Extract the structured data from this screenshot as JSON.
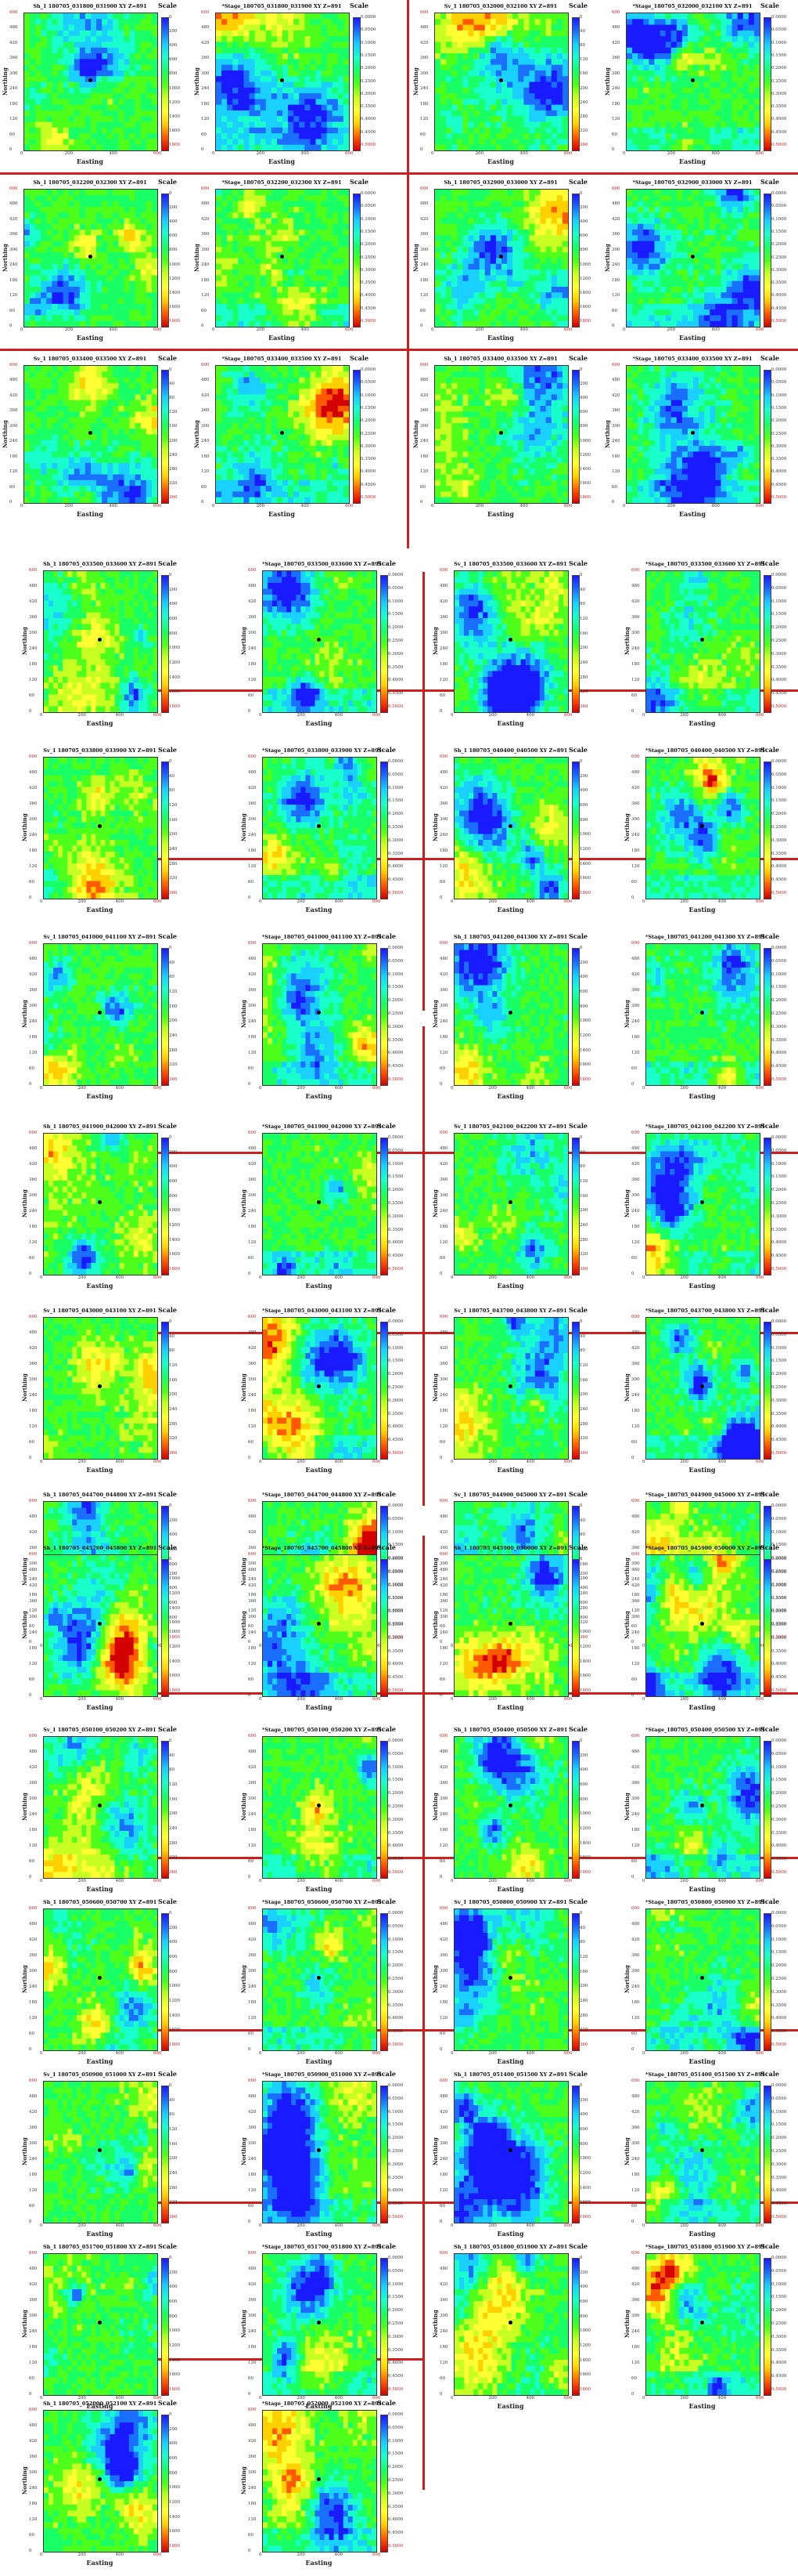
{
  "labels": {
    "x_axis": "Easting",
    "y_axis": "Northing",
    "scale": "Scale"
  },
  "colors": {
    "separator": "#cc1f1f",
    "rainbow": [
      "#d40000",
      "#ff5a00",
      "#ffd000",
      "#ffff33",
      "#c8ff22",
      "#4dff1a",
      "#19ff66",
      "#19ffcc",
      "#19d0ff",
      "#1a6fff",
      "#1a1aff"
    ]
  },
  "scales": {
    "sv": [
      "0",
      "40",
      "80",
      "120",
      "160",
      "200",
      "240",
      "280",
      "320",
      "360"
    ],
    "sh": [
      "0",
      "200",
      "400",
      "600",
      "800",
      "1000",
      "1200",
      "1400",
      "1600",
      "1800"
    ],
    "stage": [
      "0.0000",
      "0.0500",
      "0.1000",
      "0.1500",
      "0.2000",
      "0.2500",
      "0.3000",
      "0.3500",
      "0.4000",
      "0.4500",
      "0.5000"
    ]
  },
  "xticks": [
    "0",
    "200",
    "400",
    "600"
  ],
  "yticks": [
    "0",
    "60",
    "120",
    "180",
    "240",
    "300",
    "360",
    "420",
    "480",
    "600"
  ],
  "figure": {
    "panels": [
      {
        "title": "Sh_1 180705_031800_031900 XY Z=891",
        "kind": "sh"
      },
      {
        "title": "*Stage_180705_031800_031900 XY Z=891",
        "kind": "stage"
      },
      {
        "title": "Sv_1 180705_032000_032100 XY Z=891",
        "kind": "sv"
      },
      {
        "title": "*Stage_180705_032000_032100 XY Z=891",
        "kind": "stage"
      },
      {
        "title": "Sh_1 180705_032200_032300 XY Z=891",
        "kind": "sh"
      },
      {
        "title": "*Stage_180705_032200_032300 XY Z=891",
        "kind": "stage"
      },
      {
        "title": "Sh_1 180705_032900_033000 XY Z=891",
        "kind": "sh"
      },
      {
        "title": "*Stage_180705_032900_033000 XY Z=891",
        "kind": "stage"
      },
      {
        "title": "Sv_1 180705_033400_033500 XY Z=891",
        "kind": "sv"
      },
      {
        "title": "*Stage_180705_033400_033500 XY Z=891",
        "kind": "stage"
      },
      {
        "title": "Sh_1 180705_033400_033500 XY Z=891",
        "kind": "sh"
      },
      {
        "title": "*Stage_180705_033400_033500 XY Z=891",
        "kind": "stage"
      },
      {
        "title": "Sh_1 180705_033500_033600 XY Z=891",
        "kind": "sh"
      },
      {
        "title": "*Stage_180705_033500_033600 XY Z=891",
        "kind": "stage"
      },
      {
        "title": "Sv_1 180705_033500_033600 XY Z=891",
        "kind": "sv"
      },
      {
        "title": "*Stage_180705_033500_033600 XY Z=891",
        "kind": "stage"
      },
      {
        "title": "Sv_1 180705_033800_033900 XY Z=891",
        "kind": "sv"
      },
      {
        "title": "*Stage_180705_033800_033900 XY Z=891",
        "kind": "stage"
      },
      {
        "title": "Sh_1 180705_040400_040500 XY Z=891",
        "kind": "sh"
      },
      {
        "title": "*Stage_180705_040400_040500 XY Z=891",
        "kind": "stage"
      },
      {
        "title": "Sv_1 180705_041000_041100 XY Z=891",
        "kind": "sv"
      },
      {
        "title": "*Stage_180705_041000_041100 XY Z=891",
        "kind": "stage"
      },
      {
        "title": "Sh_1 180705_041200_041300 XY Z=891",
        "kind": "sh"
      },
      {
        "title": "*Stage_180705_041200_041300 XY Z=891",
        "kind": "stage"
      },
      {
        "title": "Sh_1 180705_041900_042000 XY Z=891",
        "kind": "sh"
      },
      {
        "title": "*Stage_180705_041900_042000 XY Z=891",
        "kind": "stage"
      },
      {
        "title": "Sv_1 180705_042100_042200 XY Z=891",
        "kind": "sv"
      },
      {
        "title": "*Stage_180705_042100_042200 XY Z=891",
        "kind": "stage"
      },
      {
        "title": "Sv_1 180705_043000_043100 XY Z=891",
        "kind": "sv"
      },
      {
        "title": "*Stage_180705_043000_043100 XY Z=891",
        "kind": "stage"
      },
      {
        "title": "Sv_1 180705_043700_043800 XY Z=891",
        "kind": "sv"
      },
      {
        "title": "*Stage_180705_043700_043800 XY Z=891",
        "kind": "stage"
      },
      {
        "title": "Sh_1 180705_044700_044800 XY Z=891",
        "kind": "sh"
      },
      {
        "title": "*Stage_180705_044700_044800 XY Z=891",
        "kind": "stage"
      },
      {
        "title": "Sv_1 180705_044900_045000 XY Z=891",
        "kind": "sv"
      },
      {
        "title": "*Stage_180705_044900_045000 XY Z=891",
        "kind": "stage"
      },
      {
        "title": "Sh_1 180705_045700_045800 XY Z=891",
        "kind": "sh"
      },
      {
        "title": "*Stage_180705_045700_045800 XY Z=891",
        "kind": "stage"
      },
      {
        "title": "Sh_1 180705_045900_050000 XY Z=891",
        "kind": "sh"
      },
      {
        "title": "*Stage_180705_045900_050000 XY Z=891",
        "kind": "stage"
      },
      {
        "title": "Sv_1 180705_050100_050200 XY Z=891",
        "kind": "sv"
      },
      {
        "title": "*Stage_180705_050100_050200 XY Z=891",
        "kind": "stage"
      },
      {
        "title": "Sh_1 180705_050400_050500 XY Z=891",
        "kind": "sh"
      },
      {
        "title": "*Stage_180705_050400_050500 XY Z=891",
        "kind": "stage"
      },
      {
        "title": "Sh_1 180705_050600_050700 XY Z=891",
        "kind": "sh"
      },
      {
        "title": "*Stage_180705_050600_050700 XY Z=891",
        "kind": "stage"
      },
      {
        "title": "Sv_1 180705_050800_050900 XY Z=891",
        "kind": "sv"
      },
      {
        "title": "*Stage_180705_050800_050900 XY Z=891",
        "kind": "stage"
      },
      {
        "title": "Sv_1 180705_050900_051000 XY Z=891",
        "kind": "sv"
      },
      {
        "title": "*Stage_180705_050900_051000 XY Z=891",
        "kind": "stage"
      },
      {
        "title": "Sh_1 180705_051400_051500 XY Z=891",
        "kind": "sh"
      },
      {
        "title": "*Stage_180705_051400_051500 XY Z=891",
        "kind": "stage"
      },
      {
        "title": "Sh_1 180705_051700_051800 XY Z=891",
        "kind": "sh"
      },
      {
        "title": "*Stage_180705_051700_051800 XY Z=891",
        "kind": "stage"
      },
      {
        "title": "Sh_1 180705_051800_051900 XY Z=891",
        "kind": "sh"
      },
      {
        "title": "*Stage_180705_051800_051900 XY Z=891",
        "kind": "stage"
      },
      {
        "title": "Sh_1 180705_052000_052100 XY Z=891",
        "kind": "sh"
      },
      {
        "title": "*Stage_180705_052000_052100 XY Z=891",
        "kind": "stage"
      }
    ]
  },
  "chart_data": {
    "type": "heatmap",
    "xlabel": "Easting",
    "ylabel": "Northing",
    "xlim": [
      0,
      600
    ],
    "ylim": [
      0,
      600
    ],
    "colorbar_title": "Scale",
    "colormap": "rainbow (red = minimum, blue = maximum)"
  }
}
